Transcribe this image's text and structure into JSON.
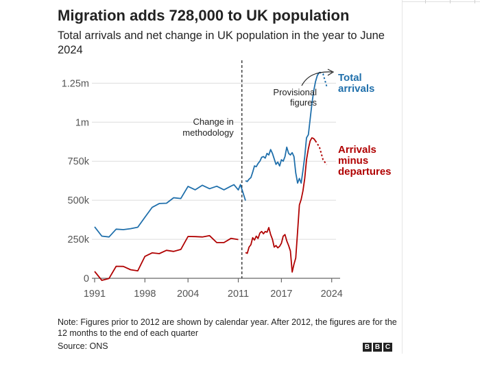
{
  "header": {
    "title": "Migration adds 728,000 to UK population",
    "subtitle": "Total arrivals and net change in UK population in the year to June 2024"
  },
  "footer": {
    "note": "Note: Figures prior to 2012 are shown by calendar year. After 2012, the figures are for the 12 months to the end of each quarter",
    "source": "Source: ONS",
    "logo": [
      "B",
      "B",
      "C"
    ]
  },
  "colors": {
    "total": "#1f6fab",
    "net": "#b00000",
    "axis": "#555555",
    "grid": "#dcdcdc"
  },
  "chart_data": {
    "type": "line",
    "title": "Migration adds 728,000 to UK population",
    "xlabel": "",
    "ylabel": "",
    "xlim": [
      1991,
      2024.6
    ],
    "ylim": [
      0,
      1300000
    ],
    "x_ticks": [
      1991,
      1998,
      2004,
      2011,
      2017,
      2024
    ],
    "y_ticks": [
      {
        "value": 0,
        "label": "0"
      },
      {
        "value": 250000,
        "label": "250k"
      },
      {
        "value": 500000,
        "label": "500k"
      },
      {
        "value": 750000,
        "label": "750k"
      },
      {
        "value": 1000000,
        "label": "1m"
      },
      {
        "value": 1250000,
        "label": "1.25m"
      }
    ],
    "annotations": {
      "methodology_year": 2011.5,
      "methodology_label": [
        "Change in",
        "methodology"
      ],
      "provisional_label": [
        "Provisional",
        "figures"
      ]
    },
    "series": [
      {
        "name": "Total arrivals",
        "label_lines": [
          "Total",
          "arrivals"
        ],
        "color_key": "total",
        "segments": [
          {
            "style": "solid",
            "points": [
              [
                1991,
                330000
              ],
              [
                1992,
                270000
              ],
              [
                1993,
                265000
              ],
              [
                1994,
                315000
              ],
              [
                1995,
                312000
              ],
              [
                1996,
                318000
              ],
              [
                1997,
                327000
              ],
              [
                1998,
                391000
              ],
              [
                1999,
                454000
              ],
              [
                2000,
                479000
              ],
              [
                2001,
                481000
              ],
              [
                2002,
                516000
              ],
              [
                2003,
                511000
              ],
              [
                2004,
                589000
              ],
              [
                2005,
                567000
              ],
              [
                2006,
                596000
              ],
              [
                2007,
                574000
              ],
              [
                2008,
                590000
              ],
              [
                2009,
                567000
              ],
              [
                2010,
                591000
              ],
              [
                2011,
                566000
              ],
              [
                2012,
                498000
              ],
              [
                2010.4,
                600000
              ],
              [
                2011.3,
                600000
              ]
            ]
          },
          {
            "style": "solid",
            "points": [
              [
                2012,
                625000
              ],
              [
                2012.25,
                620000
              ],
              [
                2012.5,
                635000
              ],
              [
                2012.75,
                645000
              ],
              [
                2013,
                680000
              ],
              [
                2013.25,
                720000
              ],
              [
                2013.5,
                715000
              ],
              [
                2013.75,
                735000
              ],
              [
                2014,
                750000
              ],
              [
                2014.25,
                775000
              ],
              [
                2014.5,
                780000
              ],
              [
                2014.75,
                770000
              ],
              [
                2015,
                800000
              ],
              [
                2015.25,
                790000
              ],
              [
                2015.5,
                825000
              ],
              [
                2015.75,
                800000
              ],
              [
                2016,
                765000
              ],
              [
                2016.25,
                730000
              ],
              [
                2016.5,
                745000
              ],
              [
                2016.75,
                720000
              ],
              [
                2017,
                760000
              ],
              [
                2017.25,
                750000
              ],
              [
                2017.5,
                780000
              ],
              [
                2017.75,
                840000
              ],
              [
                2018,
                800000
              ],
              [
                2018.25,
                790000
              ],
              [
                2018.5,
                805000
              ],
              [
                2018.75,
                780000
              ],
              [
                2019,
                675000
              ],
              [
                2019.25,
                610000
              ],
              [
                2019.5,
                640000
              ],
              [
                2019.75,
                610000
              ],
              [
                2020,
                690000
              ],
              [
                2020.25,
                780000
              ],
              [
                2020.5,
                900000
              ],
              [
                2020.75,
                920000
              ],
              [
                2021,
                1020000
              ],
              [
                2021.25,
                1120000
              ],
              [
                2021.5,
                1200000
              ],
              [
                2021.75,
                1260000
              ],
              [
                2022,
                1300000
              ],
              [
                2022.3,
                1320000
              ]
            ]
          },
          {
            "style": "dotted",
            "points": [
              [
                2022.3,
                1320000
              ],
              [
                2022.8,
                1310000
              ],
              [
                2023.3,
                1230000
              ]
            ]
          }
        ]
      },
      {
        "name": "Arrivals minus departures",
        "label_lines": [
          "Arrivals",
          "minus",
          "departures"
        ],
        "color_key": "net",
        "segments": [
          {
            "style": "solid",
            "points": [
              [
                1991,
                44000
              ],
              [
                1992,
                -13000
              ],
              [
                1993,
                -1000
              ],
              [
                1994,
                77000
              ],
              [
                1995,
                76000
              ],
              [
                1996,
                55000
              ],
              [
                1997,
                48000
              ],
              [
                1998,
                140000
              ],
              [
                1999,
                163000
              ],
              [
                2000,
                158000
              ],
              [
                2001,
                179000
              ],
              [
                2002,
                172000
              ],
              [
                2003,
                185000
              ],
              [
                2004,
                268000
              ],
              [
                2005,
                267000
              ],
              [
                2006,
                265000
              ],
              [
                2007,
                273000
              ],
              [
                2008,
                229000
              ],
              [
                2009,
                229000
              ],
              [
                2010,
                256000
              ],
              [
                2011,
                248000
              ]
            ]
          },
          {
            "style": "solid",
            "points": [
              [
                2012,
                165000
              ],
              [
                2012.25,
                160000
              ],
              [
                2012.5,
                200000
              ],
              [
                2012.75,
                215000
              ],
              [
                2013,
                260000
              ],
              [
                2013.25,
                245000
              ],
              [
                2013.5,
                270000
              ],
              [
                2013.75,
                255000
              ],
              [
                2014,
                290000
              ],
              [
                2014.25,
                300000
              ],
              [
                2014.5,
                285000
              ],
              [
                2014.75,
                300000
              ],
              [
                2015,
                295000
              ],
              [
                2015.25,
                325000
              ],
              [
                2015.5,
                280000
              ],
              [
                2015.75,
                250000
              ],
              [
                2016,
                200000
              ],
              [
                2016.25,
                210000
              ],
              [
                2016.5,
                195000
              ],
              [
                2016.75,
                205000
              ],
              [
                2017,
                225000
              ],
              [
                2017.25,
                270000
              ],
              [
                2017.5,
                280000
              ],
              [
                2017.75,
                240000
              ],
              [
                2018,
                210000
              ],
              [
                2018.25,
                175000
              ],
              [
                2018.5,
                40000
              ],
              [
                2018.75,
                90000
              ],
              [
                2019,
                130000
              ],
              [
                2019.25,
                300000
              ],
              [
                2019.5,
                470000
              ],
              [
                2019.75,
                505000
              ],
              [
                2020,
                560000
              ],
              [
                2020.25,
                640000
              ],
              [
                2020.5,
                760000
              ],
              [
                2020.75,
                830000
              ],
              [
                2021,
                880000
              ],
              [
                2021.25,
                900000
              ],
              [
                2021.5,
                895000
              ],
              [
                2021.75,
                880000
              ]
            ]
          },
          {
            "style": "dotted",
            "points": [
              [
                2021.75,
                880000
              ],
              [
                2022.3,
                840000
              ],
              [
                2022.8,
                760000
              ],
              [
                2023.3,
                728000
              ]
            ]
          }
        ]
      }
    ]
  }
}
